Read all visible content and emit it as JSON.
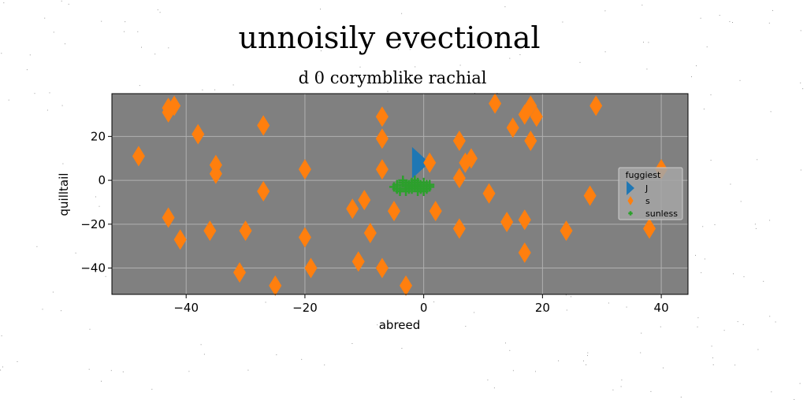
{
  "chart_data": {
    "type": "scatter",
    "title": "unnoisily evectional",
    "subtitle": "d 0 corymblike rachial",
    "xlabel": "abreed",
    "ylabel": "quilltail",
    "xlim": [
      -52.5,
      44.5
    ],
    "ylim": [
      -52,
      39.5
    ],
    "xticks": [
      -40,
      -20,
      0,
      20,
      40
    ],
    "xtick_labels": [
      "−40",
      "−20",
      "0",
      "20",
      "40"
    ],
    "yticks": [
      -40,
      -20,
      0,
      20
    ],
    "ytick_labels": [
      "−40",
      "−20",
      "0",
      "20"
    ],
    "grid": true,
    "plot_background": "#808080",
    "legend": {
      "title": "fuggiest",
      "placement": "center-right"
    },
    "series": [
      {
        "name": "J",
        "marker": "triangle-right",
        "color": "#1f77b4",
        "x": [
          -0.5
        ],
        "y": [
          8
        ]
      },
      {
        "name": "s",
        "marker": "thin-diamond",
        "color": "#ff7f0e",
        "x": [
          -43,
          -42,
          -43,
          -38,
          -48,
          -35,
          -35,
          -27,
          -20,
          -27,
          -43,
          -41,
          -36,
          -30,
          -20,
          -31,
          -19,
          -25,
          -12,
          -10,
          -7,
          -7,
          -7,
          -11,
          -9,
          -5,
          -7,
          -3,
          1,
          2,
          6,
          6,
          6,
          7,
          8,
          11,
          12,
          15,
          17,
          18,
          18,
          19,
          17,
          14,
          17,
          17,
          24,
          28,
          29,
          38,
          40
        ],
        "y": [
          31,
          34,
          33,
          21,
          11,
          7,
          3,
          25,
          5,
          -5,
          -17,
          -27,
          -23,
          -23,
          -26,
          -42,
          -40,
          -48,
          -13,
          -9,
          29,
          19,
          5,
          -37,
          -24,
          -14,
          -40,
          -48,
          8,
          -14,
          18,
          1,
          -22,
          8,
          10,
          -6,
          35,
          24,
          30,
          34,
          18,
          29,
          -18,
          -19,
          -33,
          -18,
          -23,
          -7,
          34,
          -22,
          5
        ]
      },
      {
        "name": "sunless",
        "marker": "plus",
        "color": "#2ca02c",
        "x": [
          -5,
          -4.5,
          -4,
          -3.5,
          -3,
          -2.5,
          -2,
          -1.5,
          -1,
          -0.5,
          0,
          0.5,
          1,
          -4,
          -3,
          -2,
          -1,
          0,
          -3.5,
          -2.5,
          -1.5,
          -0.5,
          0.5,
          -4.5,
          -2,
          -1,
          0,
          1,
          -3,
          -1.5
        ],
        "y": [
          -3,
          -2,
          -4,
          -1,
          -3,
          -2,
          -4,
          -3,
          -1,
          -2,
          -3,
          -4,
          -2,
          -5,
          -5,
          -1,
          -5,
          -1,
          0,
          -4,
          -2,
          -4,
          -2,
          -4,
          -3,
          -3,
          -5,
          -3,
          -2,
          0
        ]
      }
    ]
  }
}
